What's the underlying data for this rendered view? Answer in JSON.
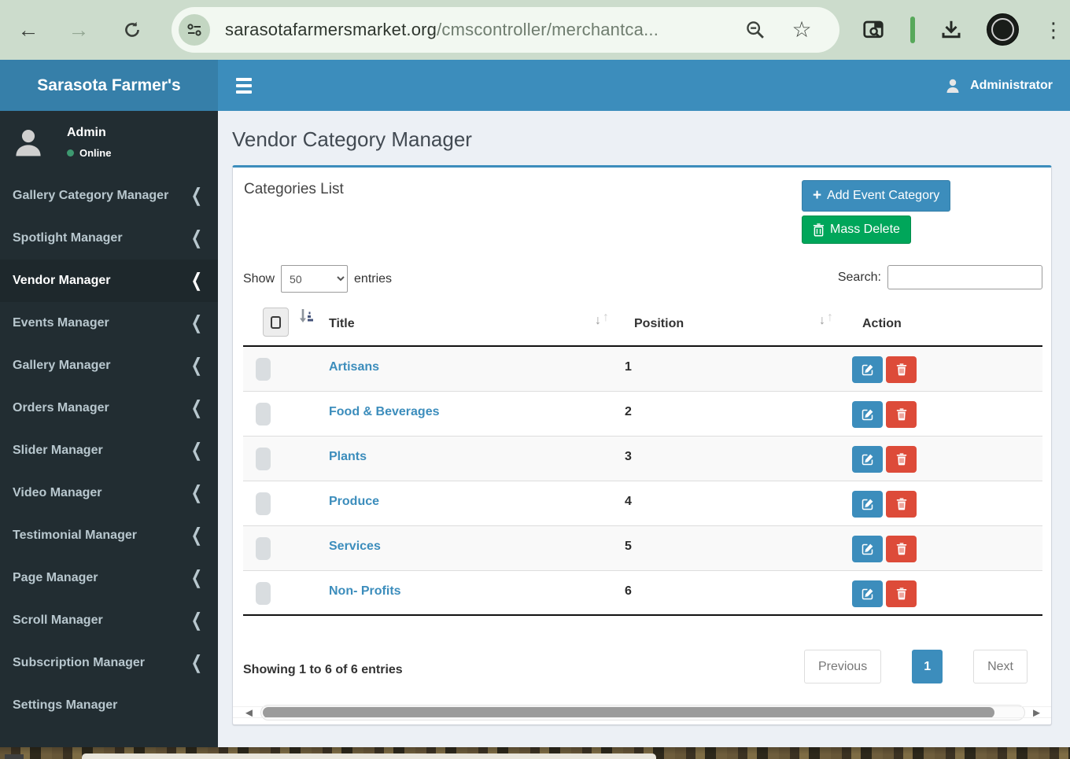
{
  "colors": {
    "accent_blue": "#3c8dbc",
    "brand_blue_dark": "#367fa9",
    "green": "#00a65a",
    "red": "#dd4b39",
    "sidebar_bg": "#222d32",
    "sidebar_active_bg": "#1e282c",
    "sidebar_text": "#b8c7ce",
    "content_bg": "#ecf0f5",
    "chrome_bg": "#ccdccc",
    "extension_separator_green": "#57a85a",
    "stripe": "#f9f9f9"
  },
  "icons": {
    "back": "←",
    "forward": "→",
    "star": "☆",
    "dots": "⋮",
    "chevron_left": "❮",
    "caret_scroll_left": "◄",
    "caret_scroll_right": "►",
    "sort_down": "↓",
    "sort_up": "↑",
    "plus": "+"
  },
  "browser": {
    "url_domain": "sarasotafarmersmarket.org",
    "url_path": "/cmscontroller/merchantca..."
  },
  "header": {
    "brand": "Sarasota Farmer's",
    "user_label": "Administrator"
  },
  "sidebar": {
    "user": {
      "name": "Admin",
      "status": "Online"
    },
    "items": [
      {
        "label": "Gallery Category Manager",
        "chevron": true,
        "active": false
      },
      {
        "label": "Spotlight Manager",
        "chevron": true,
        "active": false
      },
      {
        "label": "Vendor Manager",
        "chevron": true,
        "active": true
      },
      {
        "label": "Events Manager",
        "chevron": true,
        "active": false
      },
      {
        "label": "Gallery Manager",
        "chevron": true,
        "active": false
      },
      {
        "label": "Orders Manager",
        "chevron": true,
        "active": false
      },
      {
        "label": "Slider Manager",
        "chevron": true,
        "active": false
      },
      {
        "label": "Video Manager",
        "chevron": true,
        "active": false
      },
      {
        "label": "Testimonial Manager",
        "chevron": true,
        "active": false
      },
      {
        "label": "Page Manager",
        "chevron": true,
        "active": false
      },
      {
        "label": "Scroll Manager",
        "chevron": true,
        "active": false
      },
      {
        "label": "Subscription Manager",
        "chevron": true,
        "active": false
      },
      {
        "label": "Settings Manager",
        "chevron": false,
        "active": false
      }
    ]
  },
  "main": {
    "page_title": "Vendor Category Manager",
    "box_title": "Categories List",
    "buttons": {
      "add_label": "Add Event Category",
      "mass_delete_label": "Mass Delete"
    },
    "controls": {
      "show_label": "Show",
      "entries_label": "entries",
      "page_length": "50",
      "search_label": "Search:"
    },
    "table": {
      "headers": {
        "title": "Title",
        "position": "Position",
        "action": "Action"
      },
      "rows": [
        {
          "title": "Artisans",
          "position": "1"
        },
        {
          "title": "Food & Beverages",
          "position": "2"
        },
        {
          "title": "Plants",
          "position": "3"
        },
        {
          "title": "Produce",
          "position": "4"
        },
        {
          "title": "Services",
          "position": "5"
        },
        {
          "title": "Non- Profits",
          "position": "6"
        }
      ]
    },
    "footer": {
      "showing_text": "Showing 1 to 6 of 6 entries",
      "previous_label": "Previous",
      "page_number": "1",
      "next_label": "Next"
    }
  }
}
